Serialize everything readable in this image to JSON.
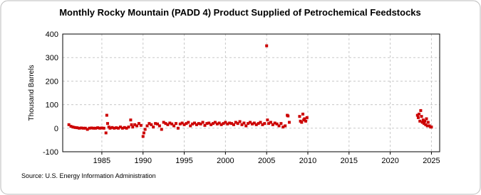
{
  "chart_data": {
    "type": "scatter",
    "title": "Monthly Rocky Mountain (PADD 4) Product Supplied of Petrochemical Feedstocks",
    "y_label": "Thousand Barrels",
    "source": "Source: U.S. Energy Information Administration",
    "color": "#cc0000",
    "grid": true,
    "xlim": [
      1980.25,
      2026
    ],
    "xticks": [
      1985,
      1990,
      1995,
      2000,
      2005,
      2010,
      2015,
      2020,
      2025
    ],
    "ylim": [
      -100,
      400
    ],
    "yticks": [
      -100,
      0,
      100,
      200,
      300,
      400
    ],
    "x": [
      1981.0,
      1981.25,
      1981.5,
      1981.75,
      1982.0,
      1982.25,
      1982.5,
      1982.75,
      1983.0,
      1983.25,
      1983.5,
      1983.75,
      1984.0,
      1984.25,
      1984.5,
      1984.75,
      1985.0,
      1985.25,
      1985.5,
      1985.6,
      1985.7,
      1985.85,
      1986.0,
      1986.25,
      1986.5,
      1986.75,
      1987.0,
      1987.25,
      1987.5,
      1987.75,
      1988.0,
      1988.25,
      1988.5,
      1988.6,
      1988.75,
      1989.0,
      1989.25,
      1989.5,
      1989.75,
      1990.0,
      1990.1,
      1990.25,
      1990.5,
      1990.75,
      1991.0,
      1991.25,
      1991.5,
      1991.75,
      1992.0,
      1992.25,
      1992.5,
      1992.75,
      1993.0,
      1993.25,
      1993.5,
      1993.75,
      1994.0,
      1994.25,
      1994.5,
      1994.75,
      1995.0,
      1995.25,
      1995.5,
      1995.75,
      1996.0,
      1996.25,
      1996.5,
      1996.75,
      1997.0,
      1997.25,
      1997.5,
      1997.75,
      1998.0,
      1998.25,
      1998.5,
      1998.75,
      1999.0,
      1999.25,
      1999.5,
      1999.75,
      2000.0,
      2000.25,
      2000.5,
      2000.75,
      2001.0,
      2001.25,
      2001.5,
      2001.75,
      2002.0,
      2002.25,
      2002.5,
      2002.75,
      2003.0,
      2003.25,
      2003.5,
      2003.75,
      2004.0,
      2004.25,
      2004.5,
      2004.75,
      2005.0,
      2005.1,
      2005.25,
      2005.5,
      2005.75,
      2006.0,
      2006.25,
      2006.5,
      2006.75,
      2007.0,
      2007.25,
      2007.5,
      2007.6,
      2007.75,
      2009.0,
      2009.1,
      2009.25,
      2009.4,
      2009.5,
      2009.6,
      2009.75,
      2009.9,
      2023.3,
      2023.4,
      2023.5,
      2023.6,
      2023.7,
      2023.8,
      2023.9,
      2024.0,
      2024.1,
      2024.2,
      2024.3,
      2024.4,
      2024.5,
      2024.6,
      2024.75,
      2024.9,
      2025.0
    ],
    "values": [
      15,
      8,
      5,
      3,
      2,
      0,
      1,
      0,
      0,
      -5,
      0,
      1,
      0,
      0,
      2,
      0,
      1,
      0,
      -20,
      55,
      20,
      5,
      0,
      3,
      0,
      2,
      0,
      5,
      0,
      3,
      0,
      5,
      35,
      15,
      5,
      15,
      10,
      20,
      12,
      -35,
      -20,
      -5,
      10,
      20,
      15,
      5,
      20,
      18,
      10,
      -5,
      25,
      20,
      15,
      22,
      18,
      10,
      20,
      0,
      18,
      22,
      15,
      20,
      25,
      10,
      18,
      22,
      15,
      20,
      18,
      25,
      12,
      20,
      22,
      15,
      20,
      25,
      18,
      22,
      15,
      20,
      25,
      18,
      22,
      20,
      15,
      25,
      20,
      28,
      15,
      22,
      10,
      20,
      25,
      18,
      22,
      15,
      20,
      25,
      15,
      20,
      350,
      35,
      20,
      25,
      15,
      22,
      18,
      10,
      20,
      5,
      10,
      55,
      52,
      25,
      50,
      30,
      25,
      60,
      35,
      40,
      30,
      45,
      55,
      45,
      60,
      30,
      75,
      50,
      25,
      35,
      20,
      30,
      15,
      40,
      10,
      25,
      10,
      5,
      5
    ]
  }
}
